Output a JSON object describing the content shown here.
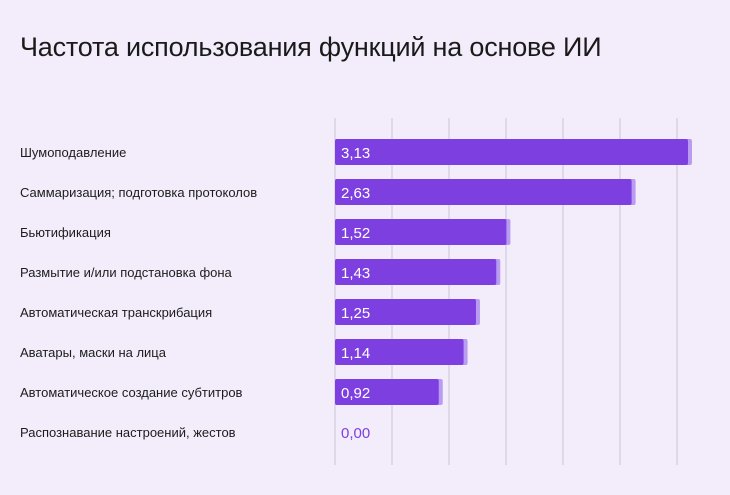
{
  "colors": {
    "background": "#f3edfb",
    "bar": "#7d3fe0",
    "bar_edge": "#b99cf2",
    "grid": "#c9c3d3",
    "value_text_on_bar": "#ffffff",
    "value_text_zero": "#7d3fe0"
  },
  "chart_data": {
    "type": "bar",
    "orientation": "horizontal",
    "title": "Частота использования функций на основе ИИ",
    "categories": [
      "Шумоподавление",
      "Саммаризация; подготовка протоколов",
      "Бьютификация",
      "Размытие и/или подстановка фона",
      "Автоматическая транскрибация",
      "Аватары, маски на лица",
      "Автоматическое создание субтитров",
      "Распознавание настроений, жестов"
    ],
    "values": [
      3.13,
      2.63,
      1.52,
      1.43,
      1.25,
      1.14,
      0.92,
      0.0
    ],
    "value_labels": [
      "3,13",
      "2,63",
      "1,52",
      "1,43",
      "1,25",
      "1,14",
      "0,92",
      "0,00"
    ],
    "xlim": [
      0,
      3.13
    ],
    "grid": true,
    "legend": "none"
  }
}
